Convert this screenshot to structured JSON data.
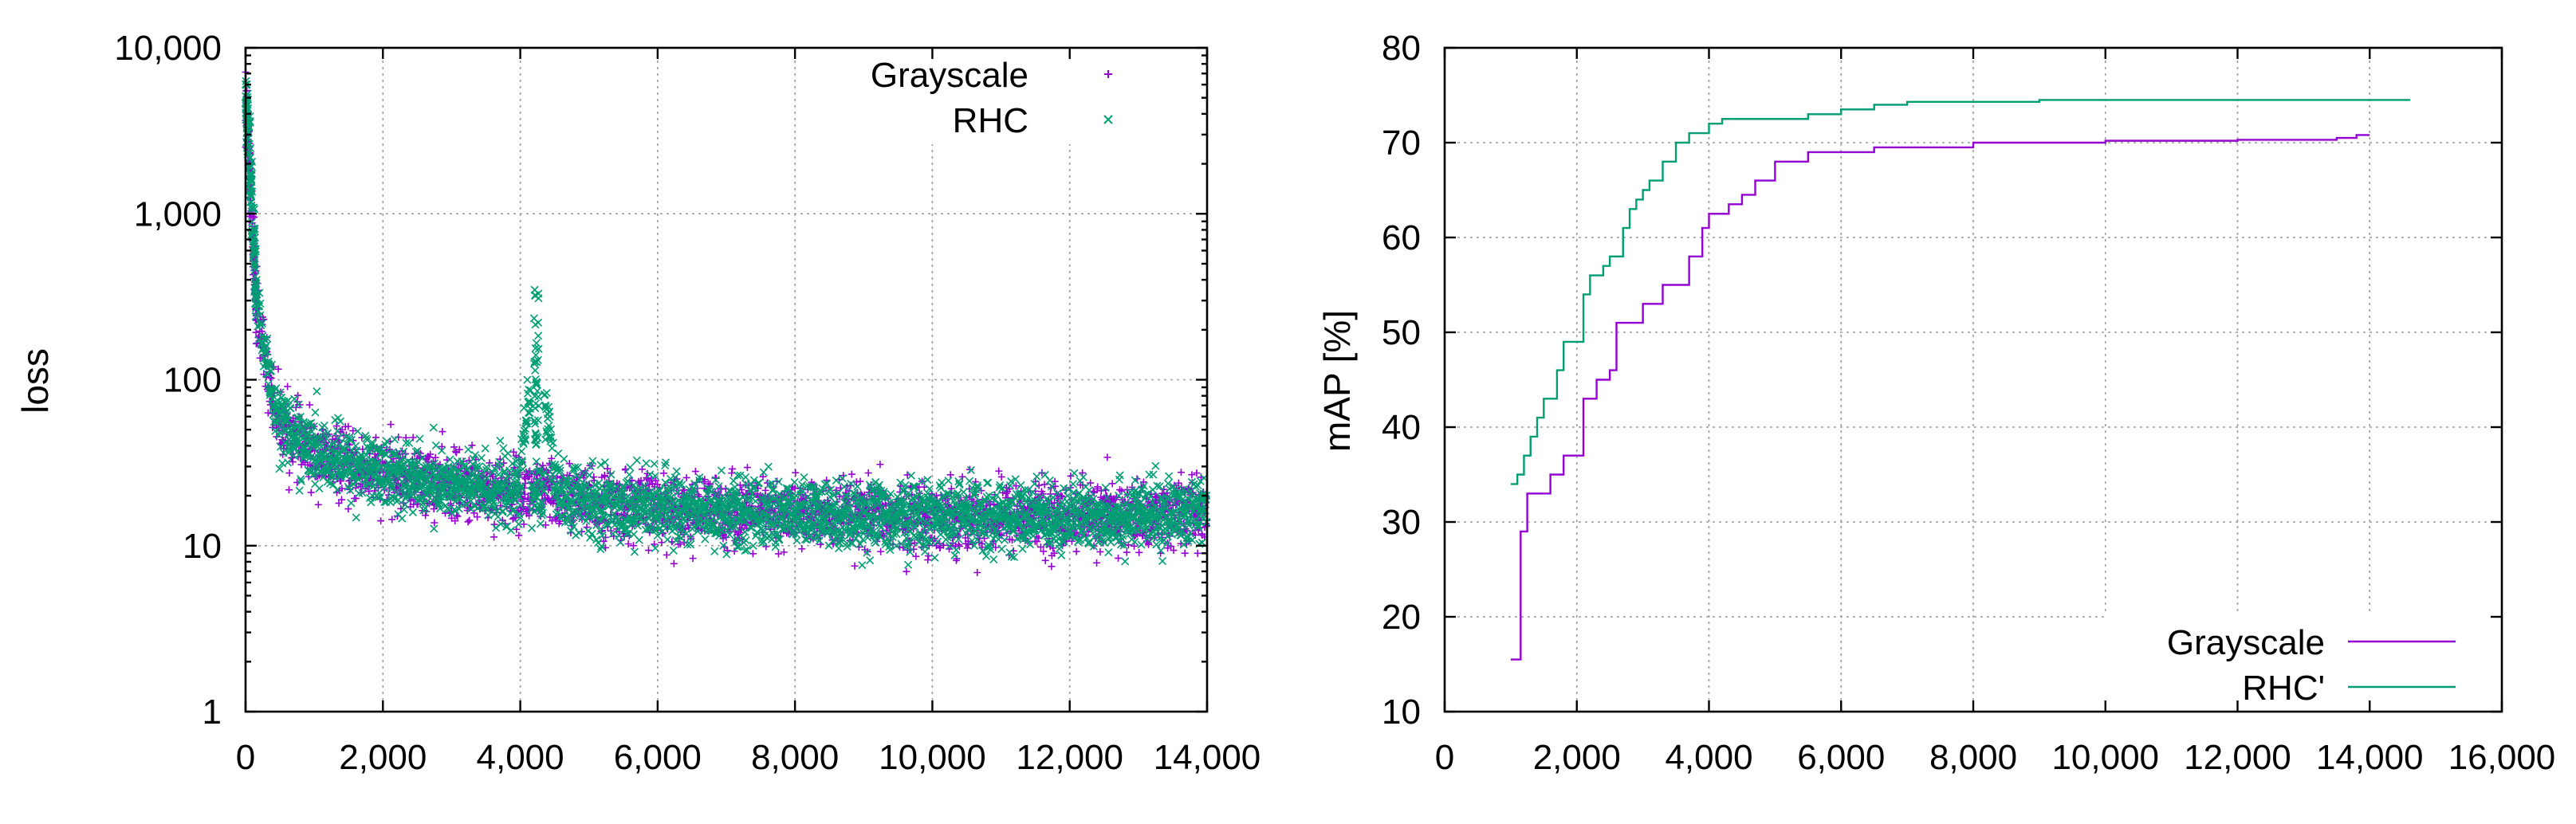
{
  "chart_data": [
    {
      "type": "scatter",
      "xlabel": "",
      "ylabel": "loss",
      "xlim": [
        0,
        14000
      ],
      "ylim": [
        1,
        10000
      ],
      "y_scale": "log",
      "grid": true,
      "legend_position": "top-right",
      "x_ticks": [
        0,
        2000,
        4000,
        6000,
        8000,
        10000,
        12000,
        14000
      ],
      "x_tick_labels": [
        "0",
        "2,000",
        "4,000",
        "6,000",
        "8,000",
        "10,000",
        "12,000",
        "14,000"
      ],
      "y_ticks": [
        1,
        10,
        100,
        1000,
        10000
      ],
      "y_tick_labels": [
        "1",
        "10",
        "100",
        "1,000",
        "10,000"
      ],
      "series": [
        {
          "name": "Grayscale",
          "marker": "+",
          "color": "#9400d3",
          "x": [
            0,
            50,
            100,
            150,
            200,
            300,
            400,
            500,
            700,
            1000,
            1500,
            2000,
            2500,
            3000,
            3500,
            4000,
            4500,
            5000,
            6000,
            7000,
            8000,
            9000,
            10000,
            11000,
            12000,
            13000,
            14000
          ],
          "y": [
            4000,
            2000,
            800,
            320,
            220,
            120,
            75,
            55,
            45,
            35,
            30,
            27,
            25,
            23,
            22,
            21,
            20,
            18,
            17,
            16,
            15.5,
            15,
            15,
            15,
            15,
            15,
            16
          ]
        },
        {
          "name": "RHC",
          "marker": "x",
          "color": "#009e73",
          "x": [
            0,
            50,
            100,
            150,
            200,
            300,
            400,
            500,
            700,
            1000,
            1500,
            2000,
            2500,
            3000,
            3500,
            4000,
            4250,
            4500,
            5000,
            6000,
            7000,
            8000,
            9000,
            10000,
            11000,
            12000,
            13000,
            14000
          ],
          "y": [
            4500,
            2500,
            900,
            330,
            230,
            125,
            80,
            58,
            46,
            36,
            31,
            28,
            25,
            23,
            22,
            21,
            120,
            20,
            18,
            17,
            16,
            15.5,
            15,
            15,
            15,
            15,
            15,
            16
          ]
        }
      ]
    },
    {
      "type": "line",
      "xlabel": "",
      "ylabel": "mAP [%]",
      "xlim": [
        0,
        16000
      ],
      "ylim": [
        10,
        80
      ],
      "grid": true,
      "legend_position": "bottom-right",
      "x_ticks": [
        0,
        2000,
        4000,
        6000,
        8000,
        10000,
        12000,
        14000,
        16000
      ],
      "x_tick_labels": [
        "0",
        "2,000",
        "4,000",
        "6,000",
        "8,000",
        "10,000",
        "12,000",
        "14,000",
        "16,000"
      ],
      "y_ticks": [
        10,
        20,
        30,
        40,
        50,
        60,
        70,
        80
      ],
      "y_tick_labels": [
        "10",
        "20",
        "30",
        "40",
        "50",
        "60",
        "70",
        "80"
      ],
      "series": [
        {
          "name": "Grayscale",
          "color": "#9400d3",
          "x": [
            1000,
            1150,
            1250,
            1600,
            1800,
            2100,
            2300,
            2500,
            2600,
            3000,
            3300,
            3700,
            3900,
            4000,
            4300,
            4500,
            4700,
            5000,
            5500,
            6500,
            8000,
            10000,
            12000,
            13500,
            13800,
            14000
          ],
          "y": [
            15.5,
            29,
            33,
            35,
            37,
            43,
            45,
            46,
            51,
            53,
            55,
            58,
            61,
            62.5,
            63.5,
            64.5,
            66,
            68,
            69,
            69.5,
            70,
            70.2,
            70.3,
            70.5,
            70.8,
            70.8
          ]
        },
        {
          "name": "RHC'",
          "color": "#009e73",
          "x": [
            1000,
            1100,
            1200,
            1300,
            1400,
            1500,
            1700,
            1800,
            2100,
            2200,
            2400,
            2500,
            2700,
            2800,
            2900,
            3000,
            3100,
            3300,
            3500,
            3700,
            4000,
            4200,
            5000,
            5500,
            6000,
            6500,
            7000,
            9000,
            12000,
            14600
          ],
          "y": [
            34,
            35,
            37,
            39,
            41,
            43,
            46,
            49,
            54,
            56,
            57,
            58,
            61,
            63,
            64,
            65,
            66,
            68,
            70,
            71,
            72,
            72.5,
            72.5,
            73,
            73.5,
            74,
            74.3,
            74.5,
            74.5,
            74.6
          ]
        }
      ]
    }
  ]
}
